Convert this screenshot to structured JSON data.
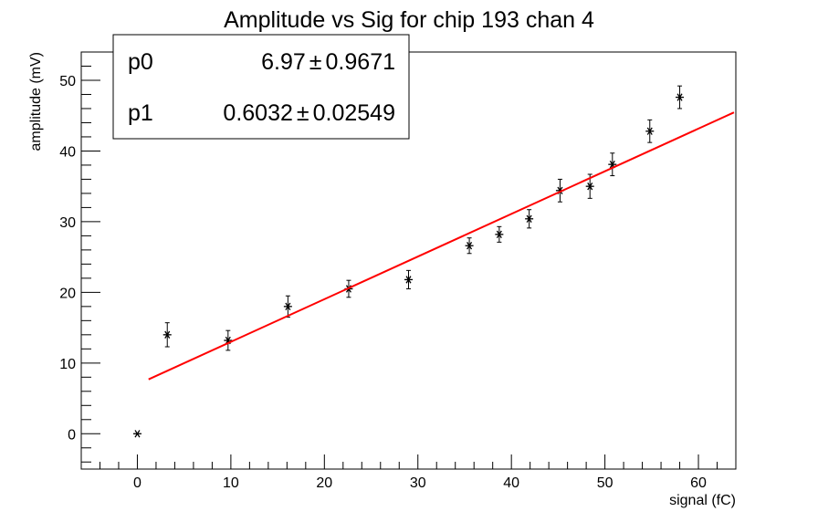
{
  "chart_data": {
    "type": "scatter",
    "title": "Amplitude vs Sig for chip 193 chan 4",
    "xlabel": "signal (fC)",
    "ylabel": "amplitude (mV)",
    "xlim": [
      -6,
      64
    ],
    "ylim": [
      -5,
      54
    ],
    "x_ticks": [
      0,
      10,
      20,
      30,
      40,
      50,
      60
    ],
    "y_ticks": [
      0,
      10,
      20,
      30,
      40,
      50
    ],
    "grid": false,
    "series": [
      {
        "marker": "star",
        "color": "#000000",
        "points": [
          {
            "x": 0.0,
            "y": 0.0,
            "err": 0.0
          },
          {
            "x": 3.2,
            "y": 14.0,
            "err": 1.7
          },
          {
            "x": 9.7,
            "y": 13.2,
            "err": 1.4
          },
          {
            "x": 16.1,
            "y": 18.0,
            "err": 1.5
          },
          {
            "x": 22.6,
            "y": 20.5,
            "err": 1.2
          },
          {
            "x": 29.0,
            "y": 21.8,
            "err": 1.3
          },
          {
            "x": 35.5,
            "y": 26.6,
            "err": 1.1
          },
          {
            "x": 38.7,
            "y": 28.2,
            "err": 1.1
          },
          {
            "x": 41.9,
            "y": 30.4,
            "err": 1.3
          },
          {
            "x": 45.2,
            "y": 34.4,
            "err": 1.6
          },
          {
            "x": 48.4,
            "y": 35.0,
            "err": 1.7
          },
          {
            "x": 50.8,
            "y": 38.1,
            "err": 1.6
          },
          {
            "x": 54.8,
            "y": 42.8,
            "err": 1.6
          },
          {
            "x": 58.0,
            "y": 47.6,
            "err": 1.6
          }
        ]
      }
    ],
    "fit": {
      "function": "linear",
      "color": "#ff0000",
      "p0": 6.97,
      "p1": 0.6032,
      "x_range": [
        1.2,
        63.8
      ]
    },
    "stats_box": {
      "position": "top-left",
      "rows": [
        {
          "name": "p0",
          "value": "6.97",
          "pm": "±",
          "error": "0.9671"
        },
        {
          "name": "p1",
          "value": "0.6032",
          "pm": "±",
          "error": "0.02549"
        }
      ]
    }
  }
}
